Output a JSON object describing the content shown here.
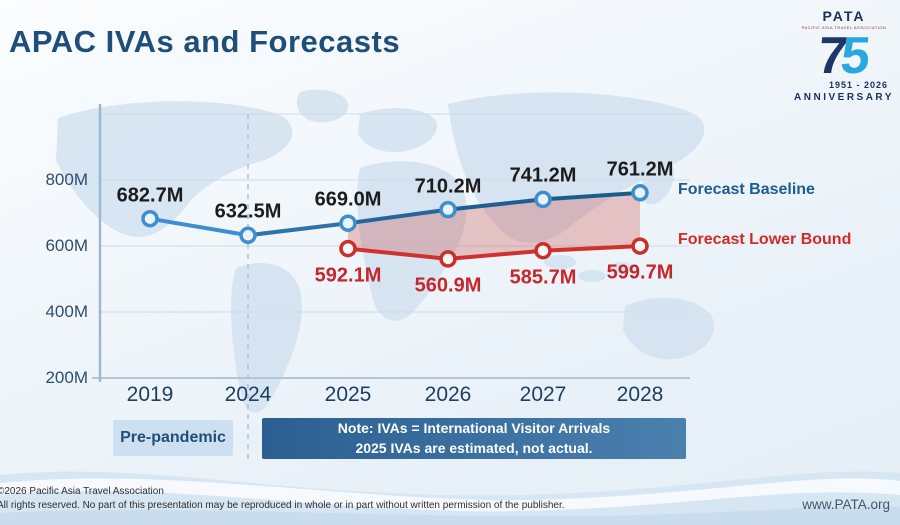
{
  "slide": {
    "title": "APAC IVAs and Forecasts",
    "footer_line1": "©2026 Pacific Asia Travel Association",
    "footer_line2": "All rights reserved. No part of this presentation may be reproduced in whole or in part without written permission of the publisher.",
    "website": "www.PATA.org"
  },
  "logo": {
    "brand": "PATA",
    "subtext": "PACIFIC ASIA TRAVEL ASSOCIATION",
    "number_7": "7",
    "number_5": "5",
    "years": "1951 - 2026",
    "anniversary": "ANNIVERSARY"
  },
  "annotations": {
    "pre_pandemic_label": "Pre-pandemic",
    "note_line1": "Note: IVAs = International Visitor Arrivals",
    "note_line2": "2025 IVAs are estimated, not actual."
  },
  "chart_data": {
    "type": "line",
    "title": "APAC IVAs and Forecasts",
    "categories": [
      "2019",
      "2024",
      "2025",
      "2026",
      "2027",
      "2028"
    ],
    "series": [
      {
        "name": "Forecast Baseline",
        "values": [
          682.7,
          632.5,
          669.0,
          710.2,
          741.2,
          761.2
        ],
        "color": "#1b5c8f",
        "color_pre_pandemic_segment": "#3e8ed0",
        "marker_fill": "#e8f4fc",
        "marker_stroke": "#3e8ed0"
      },
      {
        "name": "Forecast Lower Bound",
        "values": [
          null,
          null,
          592.1,
          560.9,
          585.7,
          599.7
        ],
        "color": "#d0312d",
        "marker_fill": "#fdf6f5",
        "marker_stroke": "#c9302c"
      }
    ],
    "unit_suffix": "M",
    "yticks": [
      {
        "label": "200M",
        "value": 200
      },
      {
        "label": "400M",
        "value": 400
      },
      {
        "label": "600M",
        "value": 600
      },
      {
        "label": "800M",
        "value": 800
      }
    ],
    "ylim": [
      200,
      1000
    ],
    "grid": true,
    "band_between_series": true,
    "band_fill": "rgba(205,62,54,0.28)",
    "divider_after_category": "2024",
    "legend_position": "right"
  }
}
